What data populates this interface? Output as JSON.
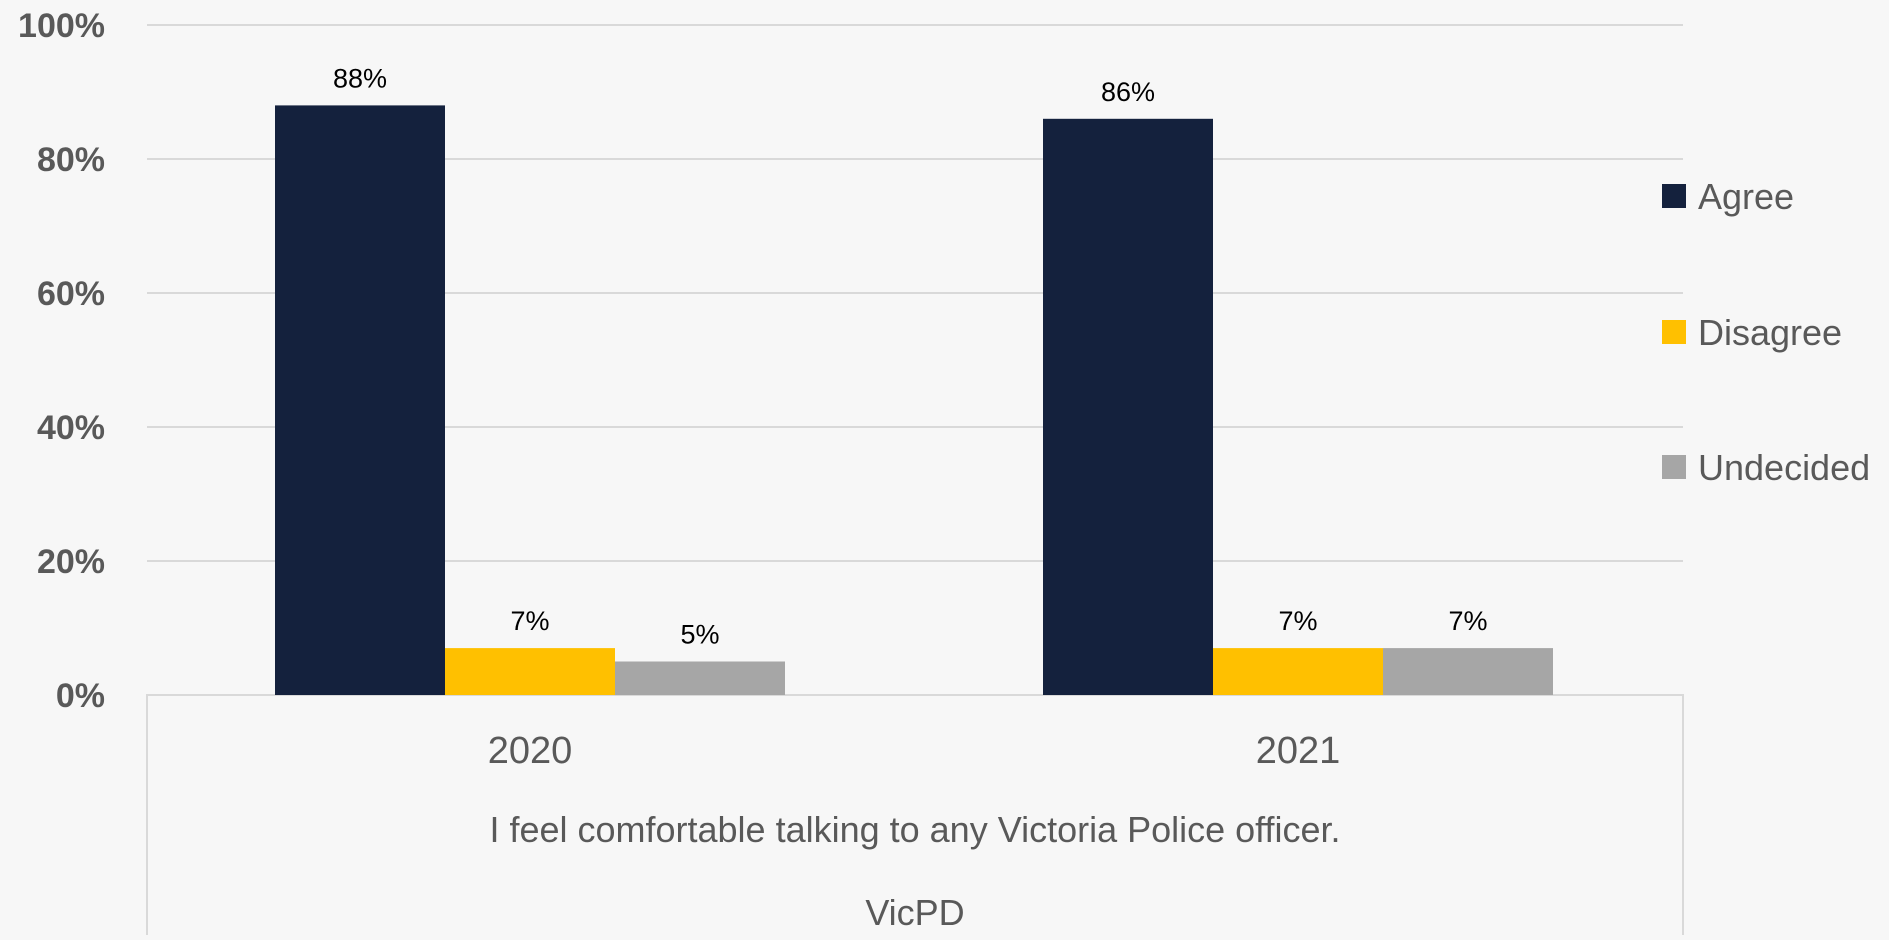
{
  "chart_data": {
    "type": "bar",
    "categories": [
      "2020",
      "2021"
    ],
    "series": [
      {
        "name": "Agree",
        "values": [
          88,
          86
        ],
        "labels": [
          "88%",
          "86%"
        ],
        "color": "#14213d"
      },
      {
        "name": "Disagree",
        "values": [
          7,
          7
        ],
        "labels": [
          "7%",
          "7%"
        ],
        "color": "#ffc000"
      },
      {
        "name": "Undecided",
        "values": [
          5,
          7
        ],
        "labels": [
          "5%",
          "7%"
        ],
        "color": "#a6a6a6"
      }
    ],
    "yticks": [
      "0%",
      "20%",
      "40%",
      "60%",
      "80%",
      "100%"
    ],
    "ylim": [
      0,
      100
    ],
    "grid": true,
    "legend_position": "right",
    "xlabel_lines": [
      "I feel comfortable talking to any Victoria Police officer.",
      "VicPD"
    ],
    "title": "",
    "ylabel": ""
  }
}
